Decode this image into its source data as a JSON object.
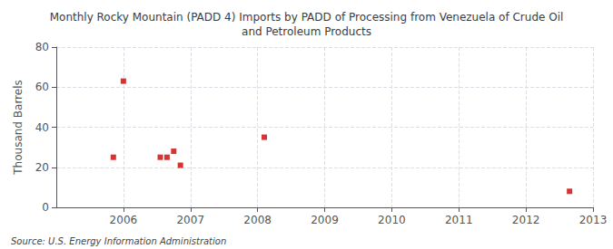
{
  "chart_data": {
    "type": "scatter",
    "title": "Monthly Rocky Mountain (PADD 4) Imports by PADD of Processing from Venezuela of Crude Oil\nand Petroleum Products",
    "ylabel": "Thousand Barrels",
    "annotations": [
      "Source: U.S. Energy Information Administration"
    ],
    "x": [
      2005.85,
      2006.0,
      2006.55,
      2006.65,
      2006.75,
      2006.85,
      2008.1,
      2012.65
    ],
    "values": [
      25,
      63,
      25,
      25,
      28,
      21,
      35,
      8
    ],
    "color": "#cc0000",
    "marker": "square",
    "xlim": [
      2005,
      2013
    ],
    "xticks": [
      2006,
      2007,
      2008,
      2009,
      2010,
      2011,
      2012,
      2013
    ],
    "ylim": [
      0,
      80
    ],
    "yticks": [
      0,
      20,
      40,
      60,
      80
    ],
    "grid": true
  }
}
